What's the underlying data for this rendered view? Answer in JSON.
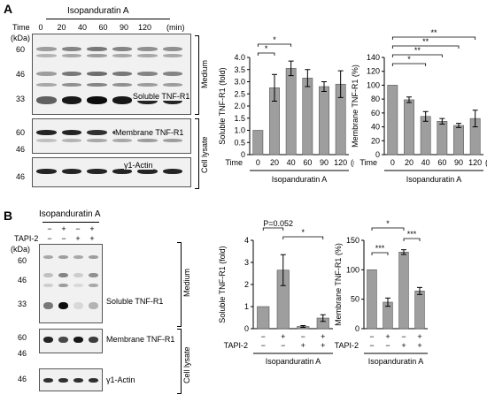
{
  "panelA": {
    "letter": "A",
    "drug": "Isopanduratin A",
    "time_label": "Time",
    "time_points": [
      "0",
      "20",
      "40",
      "60",
      "90",
      "120"
    ],
    "time_unit": "(min)",
    "kda": "(kDa)",
    "markers_top": [
      "60",
      "46",
      "33"
    ],
    "markers_mid": [
      "60",
      "46"
    ],
    "markers_bot": [
      "46"
    ],
    "blot_labels": [
      "Soluble TNF-R1",
      "Membrane TNF-R1",
      "γ1-Actin"
    ],
    "side_labels": [
      "Medium",
      "Cell lysate"
    ]
  },
  "panelB": {
    "letter": "B",
    "drug": "Isopanduratin A",
    "tapi_label": "TAPI-2",
    "kda": "(kDa)",
    "drug_signs": [
      "−",
      "+",
      "−",
      "+"
    ],
    "tapi_signs": [
      "−",
      "−",
      "+",
      "+"
    ],
    "markers_top": [
      "60",
      "46",
      "33"
    ],
    "markers_mid": [
      "60",
      "46"
    ],
    "markers_bot": [
      "46"
    ],
    "blot_labels": [
      "Soluble TNF-R1",
      "Membrane TNF-R1",
      "γ1-Actin"
    ],
    "side_labels": [
      "Medium",
      "Cell lysate"
    ]
  },
  "chart_data": [
    {
      "type": "bar",
      "panel": "A",
      "categories": [
        "0",
        "20",
        "40",
        "60",
        "90",
        "120"
      ],
      "values": [
        1.0,
        2.75,
        3.55,
        3.15,
        2.8,
        2.9
      ],
      "errors": [
        0,
        0.55,
        0.3,
        0.35,
        0.2,
        0.55
      ],
      "ylabel": "Soluble TNF-R1 (fold)",
      "xlabel_prefix": "Time",
      "xlabel_unit": "(min)",
      "group_label": "Isopanduratin A",
      "ylim": [
        0,
        4
      ],
      "yticks": [
        "0",
        "0.5",
        "1.0",
        "1.5",
        "2.0",
        "2.5",
        "3.0",
        "3.5",
        "4.0"
      ],
      "significance": [
        {
          "from": 0,
          "to": 2,
          "label": "*"
        },
        {
          "from": 0,
          "to": 1,
          "label": "*"
        }
      ]
    },
    {
      "type": "bar",
      "panel": "A",
      "categories": [
        "0",
        "20",
        "40",
        "60",
        "90",
        "120"
      ],
      "values": [
        100,
        79,
        55,
        48,
        42,
        52
      ],
      "errors": [
        0,
        4,
        7,
        4,
        3,
        12
      ],
      "ylabel": "Membrane TNF-R1 (%)",
      "xlabel_prefix": "Time",
      "xlabel_unit": "(min)",
      "group_label": "Isopanduratin A",
      "ylim": [
        0,
        140
      ],
      "yticks": [
        "0",
        "20",
        "40",
        "60",
        "80",
        "100",
        "120",
        "140"
      ],
      "significance": [
        {
          "from": 0,
          "to": 5,
          "label": "**"
        },
        {
          "from": 0,
          "to": 4,
          "label": "**"
        },
        {
          "from": 0,
          "to": 3,
          "label": "**"
        },
        {
          "from": 0,
          "to": 2,
          "label": "*"
        }
      ]
    },
    {
      "type": "bar",
      "panel": "B",
      "categories": [
        "1",
        "2",
        "3",
        "4"
      ],
      "values": [
        1.0,
        2.65,
        0.1,
        0.48
      ],
      "errors": [
        0,
        0.7,
        0.04,
        0.15
      ],
      "ylabel": "Soluble TNF-R1 (fold)",
      "tapi_label": "TAPI-2",
      "drug_signs": [
        "−",
        "+",
        "−",
        "+"
      ],
      "tapi_signs": [
        "−",
        "−",
        "+",
        "+"
      ],
      "group_label": "Isopanduratin A",
      "ylim": [
        0,
        4
      ],
      "yticks": [
        "0",
        "1",
        "2",
        "3",
        "4"
      ],
      "significance": [
        {
          "from": 0,
          "to": 1,
          "label": "P=0.052"
        },
        {
          "from": 1,
          "to": 3,
          "label": "*"
        }
      ]
    },
    {
      "type": "bar",
      "panel": "B",
      "categories": [
        "1",
        "2",
        "3",
        "4"
      ],
      "values": [
        100,
        45,
        130,
        64
      ],
      "errors": [
        0,
        7,
        4,
        6
      ],
      "ylabel": "Membrane TNF-R1 (%)",
      "tapi_label": "TAPI-2",
      "drug_signs": [
        "−",
        "+",
        "−",
        "+"
      ],
      "tapi_signs": [
        "−",
        "−",
        "+",
        "+"
      ],
      "group_label": "Isopanduratin A",
      "ylim": [
        0,
        150
      ],
      "yticks": [
        "0",
        "50",
        "100",
        "150"
      ],
      "significance": [
        {
          "from": 0,
          "to": 2,
          "label": "*"
        },
        {
          "from": 0,
          "to": 1,
          "label": "***"
        },
        {
          "from": 2,
          "to": 3,
          "label": "***"
        }
      ]
    }
  ]
}
